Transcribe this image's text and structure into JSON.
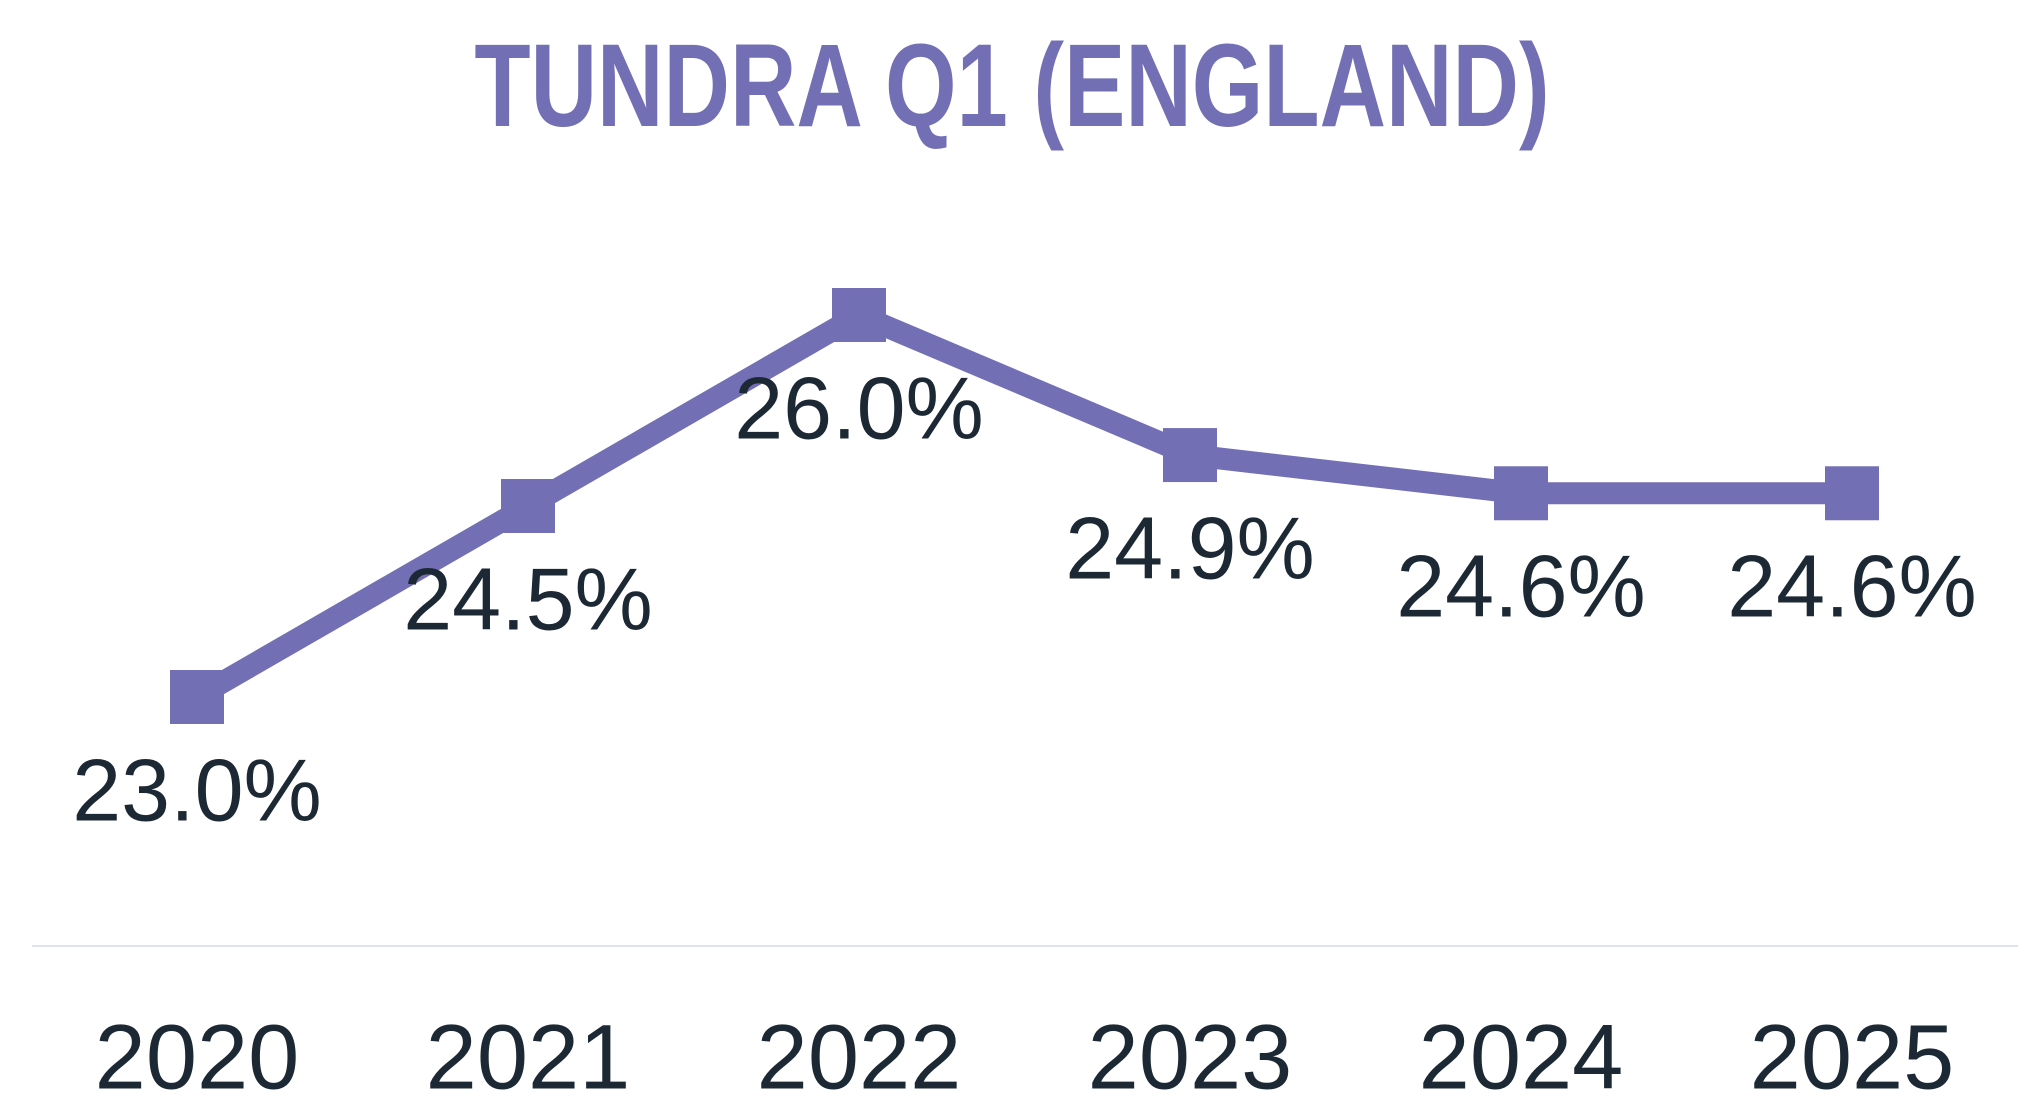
{
  "chart_data": {
    "type": "line",
    "title": "TUNDRA Q1 (ENGLAND)",
    "categories": [
      "2020",
      "2021",
      "2022",
      "2023",
      "2024",
      "2025"
    ],
    "series": [
      {
        "name": null,
        "color": "#736fb4",
        "values": [
          23.0,
          24.5,
          26.0,
          24.9,
          24.6,
          24.6
        ],
        "value_labels": [
          "23.0%",
          "24.5%",
          "26.0%",
          "24.9%",
          "24.6%",
          "24.6%"
        ]
      }
    ],
    "marker": "square",
    "grid": false
  }
}
